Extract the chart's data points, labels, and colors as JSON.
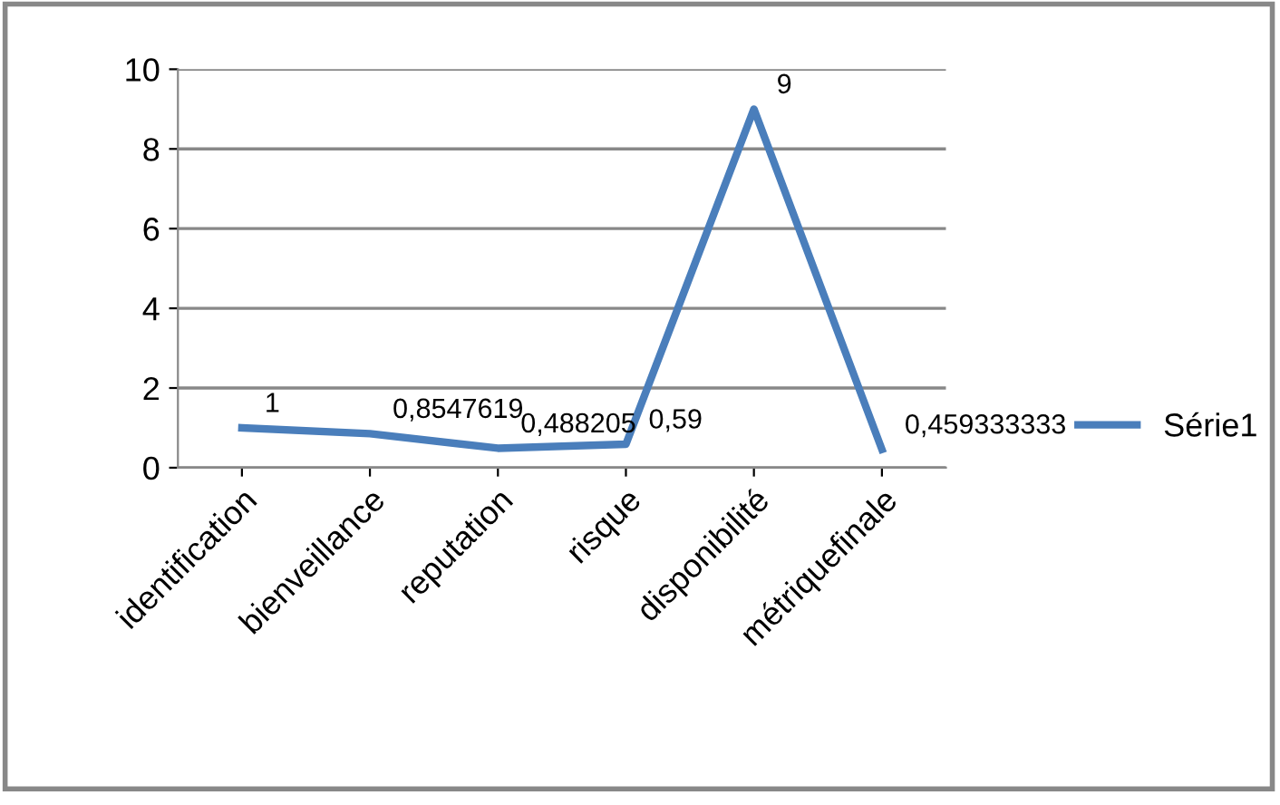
{
  "chart_data": {
    "type": "line",
    "categories": [
      "identification",
      "bienveillance",
      "reputation",
      "risque",
      "disponibilité",
      "métriquefinale"
    ],
    "series": [
      {
        "name": "Série1",
        "color": "#4a7ebb",
        "values": [
          1,
          0.8547619,
          0.488205,
          0.59,
          9,
          0.459333333
        ],
        "value_labels": [
          "1",
          "0,8547619",
          "0,488205",
          "0,59",
          "9",
          "0,459333333"
        ]
      }
    ],
    "ylim": [
      0,
      10
    ],
    "yticks": [
      0,
      2,
      4,
      6,
      8,
      10
    ],
    "grid": "y",
    "legend": "right",
    "marker": "none",
    "line_style": "solid"
  }
}
